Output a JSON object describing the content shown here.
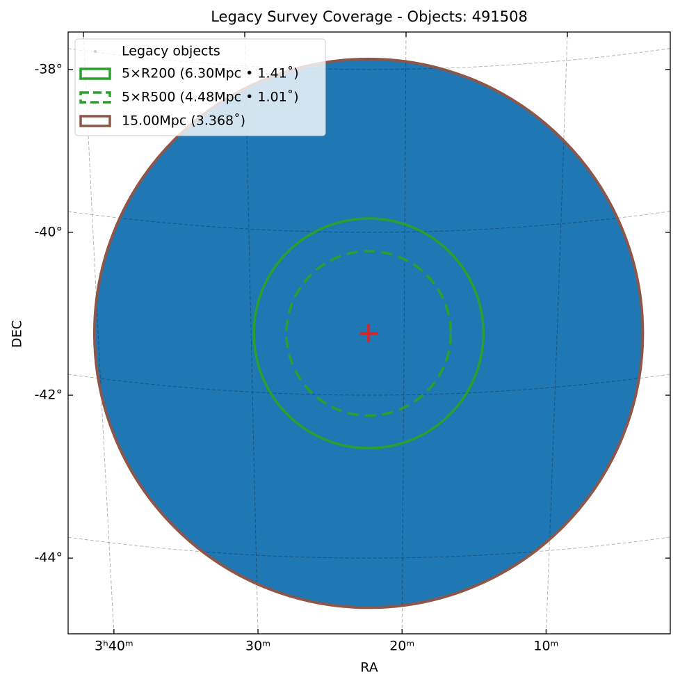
{
  "chart_data": {
    "type": "skymap",
    "title": "Legacy Survey Coverage - Objects: 491508",
    "xlabel": "RA",
    "ylabel": "DEC",
    "center": {
      "ra": 50.58,
      "dec": -41.24,
      "color": "#d62728"
    },
    "xlim": [
      55.49,
      45.65
    ],
    "ylim": [
      -44.93,
      -37.54
    ],
    "xticks": [
      {
        "value": 55,
        "label": "3ʰ40ᵐ"
      },
      {
        "value": 52.5,
        "label": "30ᵐ"
      },
      {
        "value": 50,
        "label": "20ᵐ"
      },
      {
        "value": 47.5,
        "label": "10ᵐ"
      }
    ],
    "yticks": [
      {
        "value": -38,
        "label": "-38°"
      },
      {
        "value": -40,
        "label": "-40°"
      },
      {
        "value": -42,
        "label": "-42°"
      },
      {
        "value": -44,
        "label": "-44°"
      }
    ],
    "grid": true,
    "points": {
      "name": "Legacy objects",
      "color": "#1f77b4"
    },
    "series": [
      {
        "name": "5×R200 (6.30Mpc • 1.41˚)",
        "color": "#2ca02c",
        "radius": 1.41,
        "linestyle": "solid"
      },
      {
        "name": "5×R500 (4.48Mpc • 1.01˚)",
        "color": "#2ca02c",
        "radius": 1.01,
        "linestyle": "dashed"
      },
      {
        "name": "15.00Mpc (3.368˚)",
        "color": "#8c564b",
        "radius": 3.368,
        "linestyle": "solid"
      }
    ]
  }
}
